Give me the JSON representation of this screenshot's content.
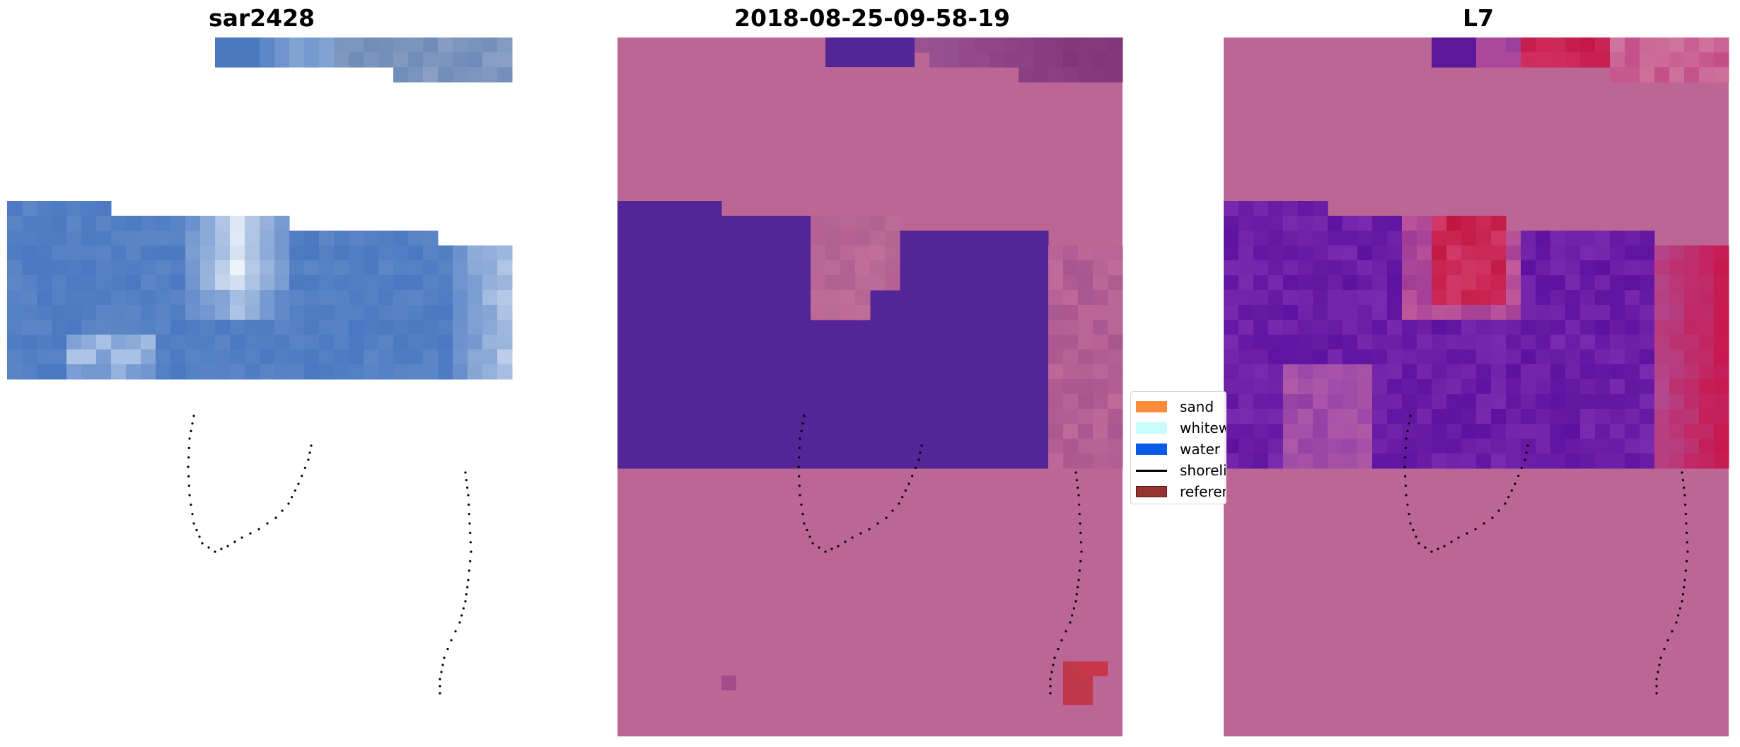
{
  "chart_data": [
    {
      "type": "heatmap",
      "title": "sar2428",
      "description_colors": {
        "base": "#4f7fc2",
        "light": "#c8d8f0",
        "white": "#f4f8fc"
      },
      "dotted_shoreline": true
    },
    {
      "type": "heatmap",
      "title": "2018-08-25-09-58-19",
      "description_colors": {
        "land": "#bc6696",
        "water": "#532597",
        "reference": "#c0394a"
      },
      "dotted_shoreline": true
    },
    {
      "type": "heatmap",
      "title": "L7",
      "description_colors": {
        "land": "#bc6696",
        "water": "#6a1aa8",
        "red": "#c4174a"
      },
      "dotted_shoreline": true
    }
  ],
  "legend": {
    "placement": "center",
    "items": [
      {
        "label": "sand",
        "color": "#ff8c3a",
        "kind": "patch"
      },
      {
        "label": "whitewater",
        "color": "#c8fbfb",
        "kind": "patch"
      },
      {
        "label": "water",
        "color": "#0a5ae8",
        "kind": "patch"
      },
      {
        "label": "shoreline",
        "color": "#000000",
        "kind": "line"
      },
      {
        "label": "reference",
        "color": "#953330",
        "kind": "patch"
      }
    ]
  }
}
